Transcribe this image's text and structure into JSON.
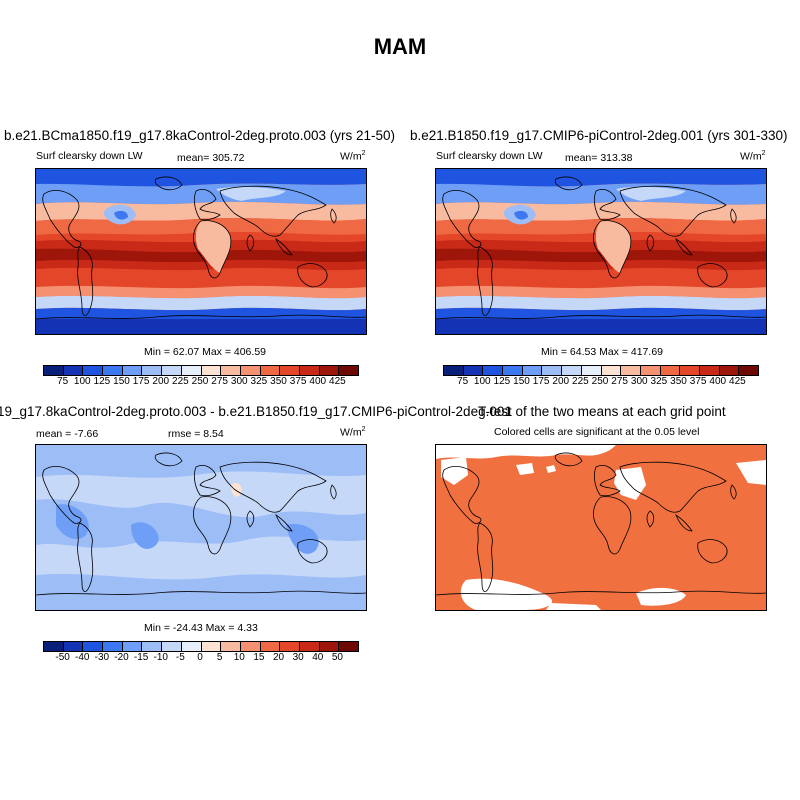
{
  "figure_title": "MAM",
  "panels": [
    {
      "title": "b.e21.BCma1850.f19_g17.8kaControl-2deg.proto.003 (yrs 21-50)",
      "variable": "Surf clearsky down LW",
      "mean_label": "mean= 305.72",
      "units_base": "W/m",
      "units_exp": "2",
      "minmax": "Min =  62.07 Max = 406.59",
      "colorbar": {
        "colors": [
          "#0a1f7a",
          "#1433b4",
          "#1f54e0",
          "#3c78f0",
          "#6e9ef5",
          "#9dbdf7",
          "#c6d8f8",
          "#e7effa",
          "#fde3d3",
          "#f9bba0",
          "#f59070",
          "#ef6a44",
          "#e4462a",
          "#c92a18",
          "#9e150a",
          "#6e0804"
        ],
        "labels": [
          "75",
          "100",
          "125",
          "150",
          "175",
          "200",
          "225",
          "250",
          "275",
          "300",
          "325",
          "350",
          "375",
          "400",
          "425"
        ]
      }
    },
    {
      "title": "b.e21.B1850.f19_g17.CMIP6-piControl-2deg.001 (yrs 301-330)",
      "variable": "Surf clearsky down LW",
      "mean_label": "mean= 313.38",
      "units_base": "W/m",
      "units_exp": "2",
      "minmax": "Min =  64.53 Max = 417.69",
      "colorbar": {
        "colors": [
          "#0a1f7a",
          "#1433b4",
          "#1f54e0",
          "#3c78f0",
          "#6e9ef5",
          "#9dbdf7",
          "#c6d8f8",
          "#e7effa",
          "#fde3d3",
          "#f9bba0",
          "#f59070",
          "#ef6a44",
          "#e4462a",
          "#c92a18",
          "#9e150a",
          "#6e0804"
        ],
        "labels": [
          "75",
          "100",
          "125",
          "150",
          "175",
          "200",
          "225",
          "250",
          "275",
          "300",
          "325",
          "350",
          "375",
          "400",
          "425"
        ]
      }
    },
    {
      "title": "19_g17.8kaControl-2deg.proto.003 - b.e21.B1850.f19_g17.CMIP6-piControl-2deg.001",
      "mean_label": "mean =  -7.66",
      "rmse_label": "rmse =   8.54",
      "units_base": "W/m",
      "units_exp": "2",
      "minmax": "Min = -24.43 Max =   4.33",
      "colorbar": {
        "colors": [
          "#0a1f7a",
          "#1433b4",
          "#1f54e0",
          "#3c78f0",
          "#6e9ef5",
          "#9dbdf7",
          "#c6d8f8",
          "#e7effa",
          "#fde3d3",
          "#f9bba0",
          "#f59070",
          "#ef6a44",
          "#e4462a",
          "#c92a18",
          "#9e150a",
          "#6e0804"
        ],
        "labels": [
          "-50",
          "-40",
          "-30",
          "-20",
          "-15",
          "-10",
          "-5",
          "0",
          "5",
          "10",
          "15",
          "20",
          "30",
          "40",
          "50"
        ]
      }
    },
    {
      "title": "T-test of the two means at each grid point",
      "subtitle": "Colored cells are significant at the 0.05 level",
      "fill_color": "#f07040"
    }
  ]
}
